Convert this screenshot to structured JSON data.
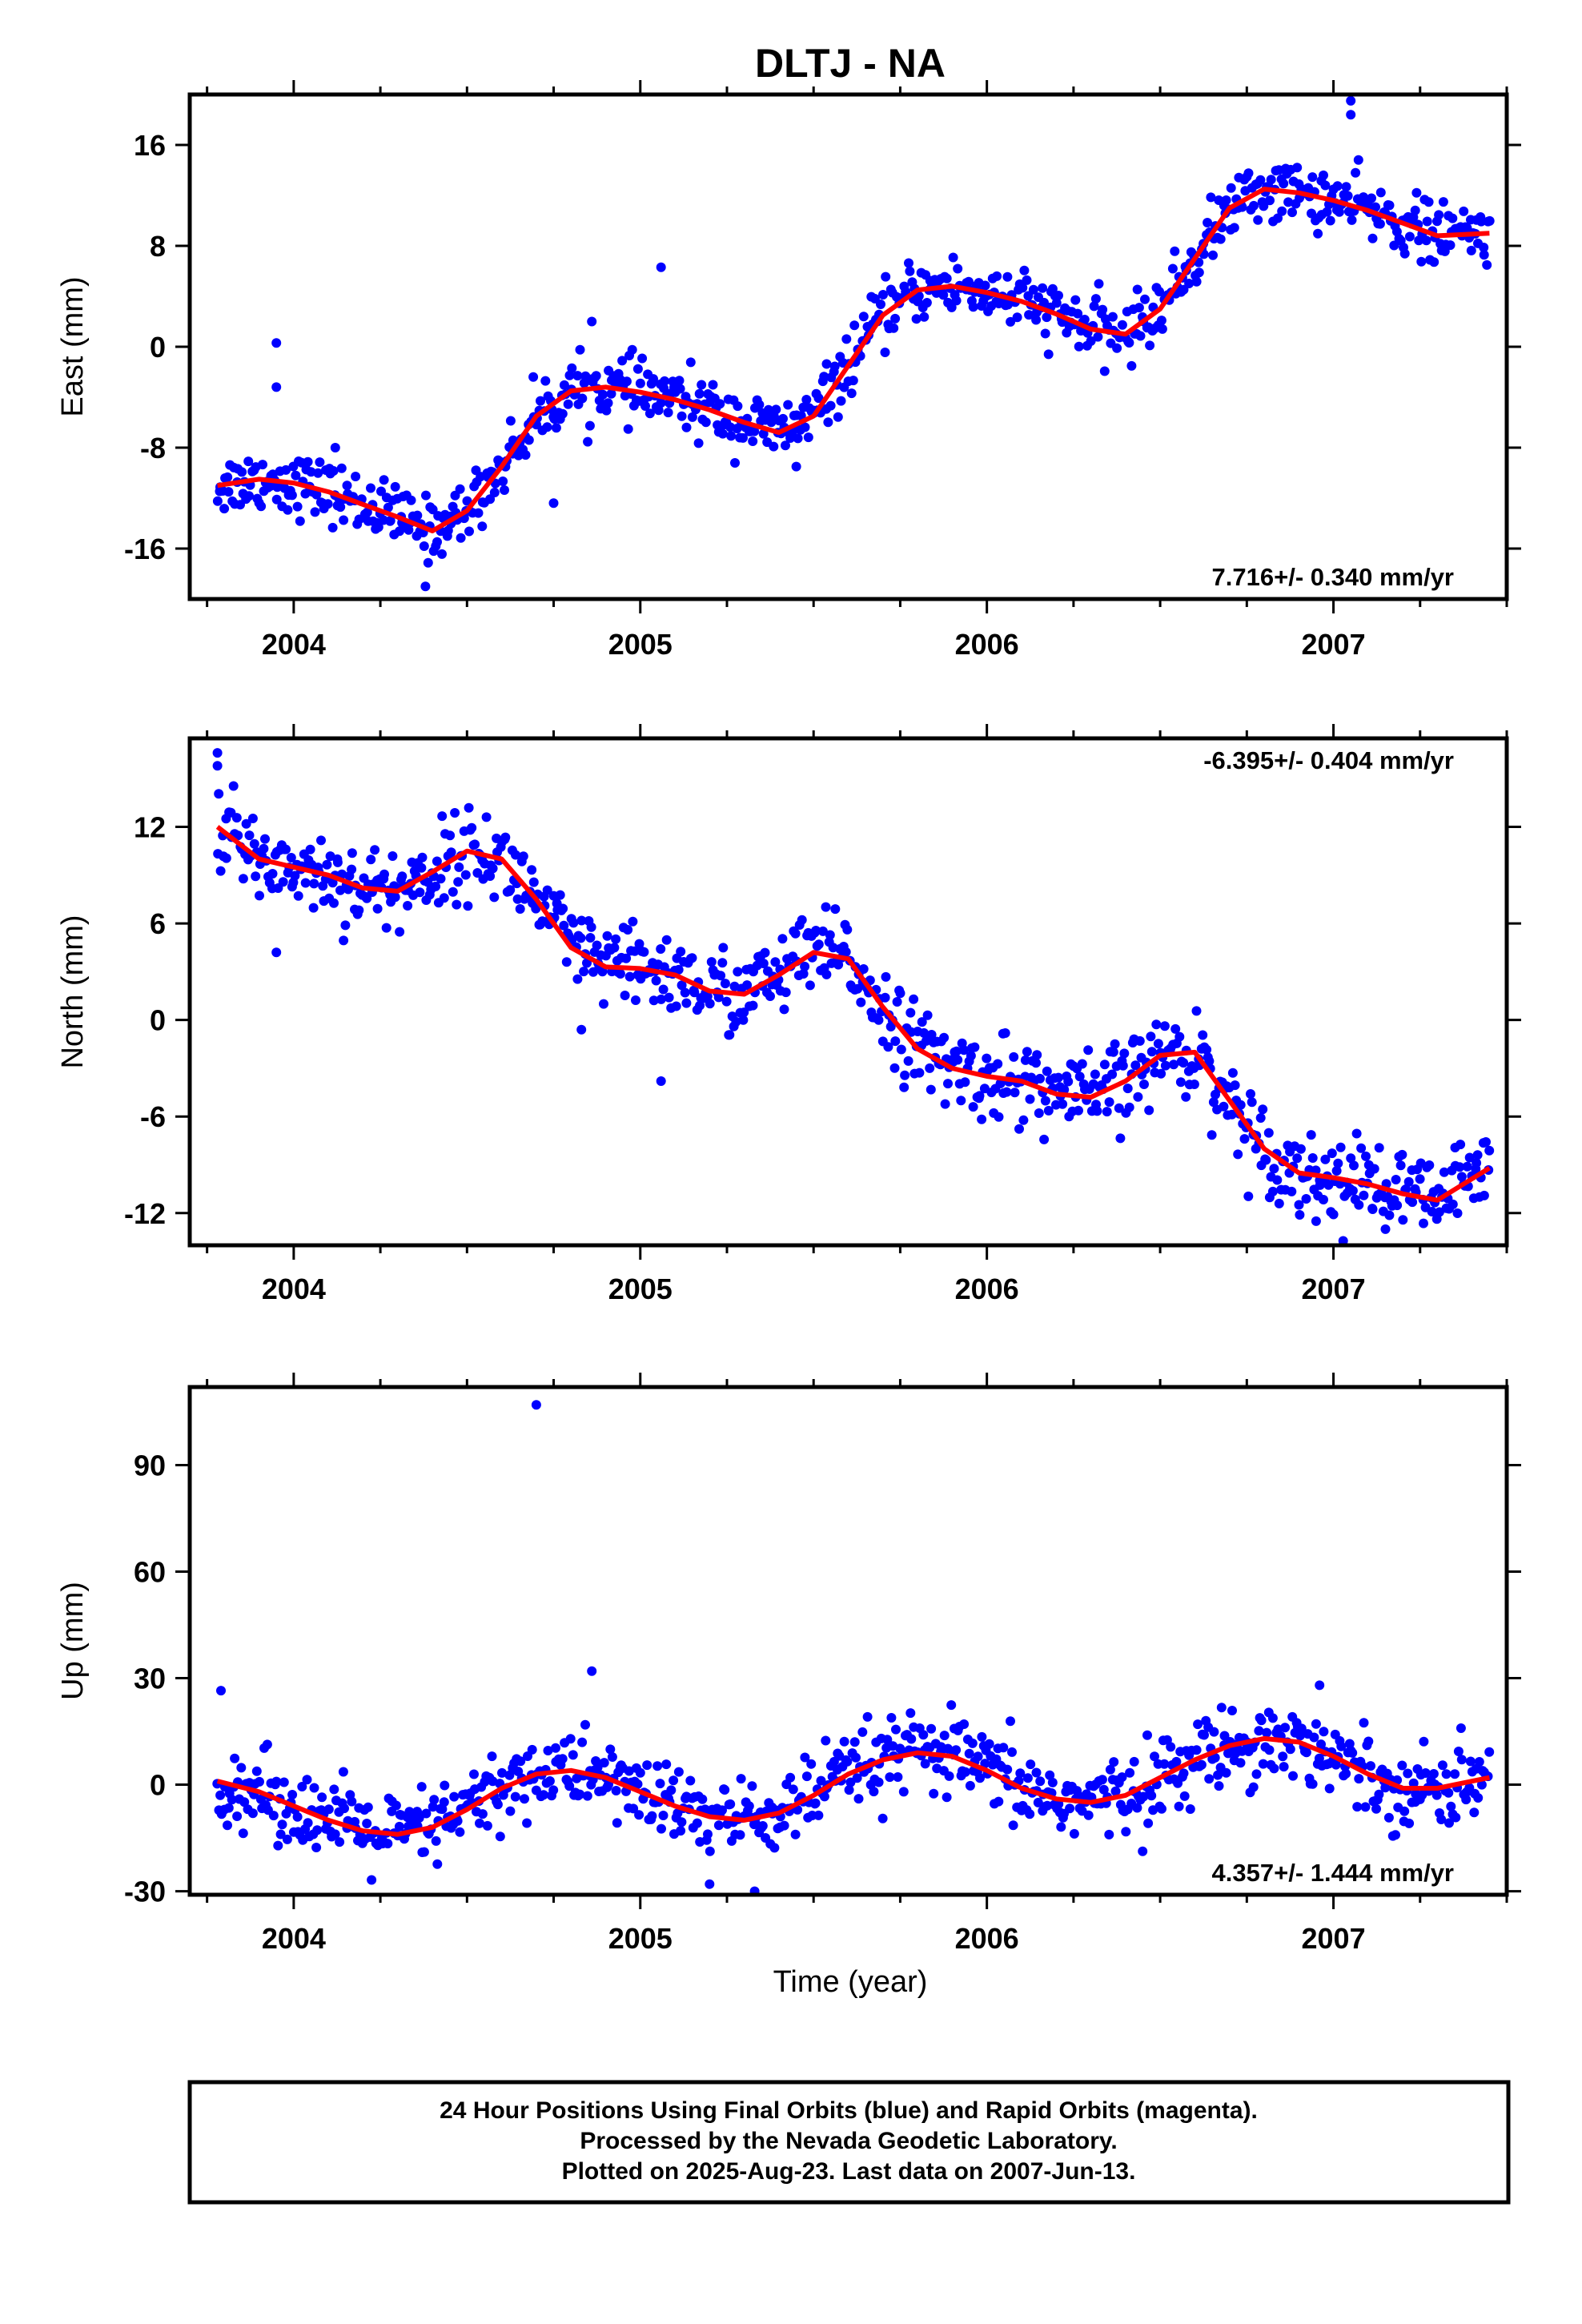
{
  "title": "DLTJ - NA",
  "xlabel": "Time (year)",
  "footer": [
    "24 Hour Positions Using Final Orbits (blue) and Rapid Orbits (magenta).",
    "Processed by the Nevada Geodetic Laboratory.",
    "Plotted on 2025-Aug-23. Last data on 2007-Jun-13."
  ],
  "colors": {
    "points": "#0000ff",
    "fit": "#ff0000",
    "axis": "#000000"
  },
  "chart_data": [
    {
      "type": "scatter",
      "ylabel": "East (mm)",
      "rate_label": "7.716+/- 0.340 mm/yr",
      "xlim": [
        2003.7,
        2007.5
      ],
      "ylim": [
        -20,
        20
      ],
      "x_ticks": [
        "2004",
        "2005",
        "2006",
        "2007"
      ],
      "y_ticks": [
        -16,
        -8,
        0,
        8,
        16
      ],
      "series": [
        {
          "kind": "points",
          "fit_x": [
            2003.78,
            2003.9,
            2004.0,
            2004.1,
            2004.2,
            2004.3,
            2004.4,
            2004.5,
            2004.6,
            2004.7,
            2004.8,
            2004.9,
            2005.0,
            2005.1,
            2005.2,
            2005.3,
            2005.4,
            2005.5,
            2005.6,
            2005.7,
            2005.8,
            2005.9,
            2006.0,
            2006.1,
            2006.2,
            2006.3,
            2006.4,
            2006.5,
            2006.6,
            2006.7,
            2006.8,
            2006.9,
            2007.0,
            2007.1,
            2007.2,
            2007.3,
            2007.45
          ],
          "fit_y": [
            -11.0,
            -10.5,
            -10.8,
            -11.5,
            -12.5,
            -13.5,
            -14.6,
            -13.0,
            -9.5,
            -5.5,
            -3.5,
            -3.2,
            -3.6,
            -4.2,
            -5.0,
            -6.0,
            -6.8,
            -5.5,
            -1.5,
            2.5,
            4.5,
            4.8,
            4.3,
            3.6,
            2.6,
            1.4,
            1.0,
            3.0,
            7.0,
            11.0,
            12.5,
            12.2,
            11.6,
            10.8,
            9.8,
            8.8,
            9.0
          ],
          "noise": 1.2,
          "count": 800,
          "outliers": [
            [
              2003.95,
              0.3
            ],
            [
              2003.95,
              -3.2
            ],
            [
              2004.12,
              -8.0
            ],
            [
              2005.06,
              6.3
            ],
            [
              2004.75,
              -12.4
            ],
            [
              2004.86,
              2.0
            ],
            [
              2007.05,
              19.5
            ],
            [
              2007.05,
              18.4
            ],
            [
              2005.45,
              -9.5
            ],
            [
              2004.38,
              -19.0
            ]
          ]
        },
        {
          "kind": "fit"
        }
      ]
    },
    {
      "type": "scatter",
      "ylabel": "North (mm)",
      "rate_label": "-6.395+/- 0.404 mm/yr",
      "xlim": [
        2003.7,
        2007.5
      ],
      "ylim": [
        -14,
        17.5
      ],
      "x_ticks": [
        "2004",
        "2005",
        "2006",
        "2007"
      ],
      "y_ticks": [
        -12,
        -6,
        0,
        6,
        12
      ],
      "series": [
        {
          "kind": "points",
          "fit_x": [
            2003.78,
            2003.9,
            2004.0,
            2004.1,
            2004.2,
            2004.3,
            2004.4,
            2004.5,
            2004.6,
            2004.7,
            2004.8,
            2004.9,
            2005.0,
            2005.1,
            2005.2,
            2005.3,
            2005.4,
            2005.5,
            2005.6,
            2005.7,
            2005.8,
            2005.9,
            2006.0,
            2006.1,
            2006.2,
            2006.3,
            2006.4,
            2006.5,
            2006.6,
            2006.7,
            2006.8,
            2006.9,
            2007.0,
            2007.1,
            2007.2,
            2007.3,
            2007.45
          ],
          "fit_y": [
            12.0,
            10.0,
            9.5,
            9.0,
            8.2,
            8.0,
            9.2,
            10.5,
            10.0,
            7.5,
            4.5,
            3.3,
            3.2,
            2.8,
            1.8,
            1.6,
            2.8,
            4.2,
            3.8,
            0.8,
            -1.8,
            -3.0,
            -3.5,
            -3.8,
            -4.6,
            -4.8,
            -3.8,
            -2.2,
            -2.0,
            -5.0,
            -8.0,
            -9.5,
            -9.8,
            -10.2,
            -10.8,
            -11.2,
            -9.2
          ],
          "noise": 1.3,
          "count": 800,
          "outliers": [
            [
              2003.78,
              16.6
            ],
            [
              2003.78,
              15.8
            ],
            [
              2003.95,
              4.2
            ],
            [
              2005.06,
              -3.8
            ],
            [
              2004.83,
              -0.6
            ],
            [
              2007.15,
              -13.0
            ],
            [
              2006.95,
              -12.5
            ]
          ]
        },
        {
          "kind": "fit"
        }
      ]
    },
    {
      "type": "scatter",
      "ylabel": "Up (mm)",
      "rate_label": "4.357+/- 1.444 mm/yr",
      "xlim": [
        2003.7,
        2007.5
      ],
      "ylim": [
        -31,
        112
      ],
      "x_ticks": [
        "2004",
        "2005",
        "2006",
        "2007"
      ],
      "y_ticks": [
        -30,
        0,
        30,
        60,
        90
      ],
      "series": [
        {
          "kind": "points",
          "fit_x": [
            2003.78,
            2003.9,
            2004.0,
            2004.1,
            2004.2,
            2004.3,
            2004.4,
            2004.5,
            2004.6,
            2004.7,
            2004.8,
            2004.9,
            2005.0,
            2005.1,
            2005.2,
            2005.3,
            2005.4,
            2005.5,
            2005.6,
            2005.7,
            2005.8,
            2005.9,
            2006.0,
            2006.1,
            2006.2,
            2006.3,
            2006.4,
            2006.5,
            2006.6,
            2006.7,
            2006.8,
            2006.9,
            2007.0,
            2007.1,
            2007.2,
            2007.3,
            2007.45
          ],
          "fit_y": [
            1,
            -2,
            -6,
            -10,
            -13,
            -14,
            -12,
            -7,
            -1,
            3,
            4,
            2,
            -2,
            -6,
            -9,
            -10,
            -8,
            -3,
            3,
            7,
            9,
            8,
            4,
            -1,
            -4,
            -5,
            -3,
            2,
            7,
            11,
            13,
            12,
            8,
            3,
            -1,
            -1,
            2
          ],
          "noise": 5.5,
          "count": 800,
          "outliers": [
            [
              2004.7,
              107
            ],
            [
              2004.86,
              32
            ],
            [
              2005.2,
              -28
            ],
            [
              2005.33,
              -30
            ],
            [
              2003.79,
              26.5
            ],
            [
              2006.96,
              28
            ]
          ]
        },
        {
          "kind": "fit"
        }
      ]
    }
  ]
}
